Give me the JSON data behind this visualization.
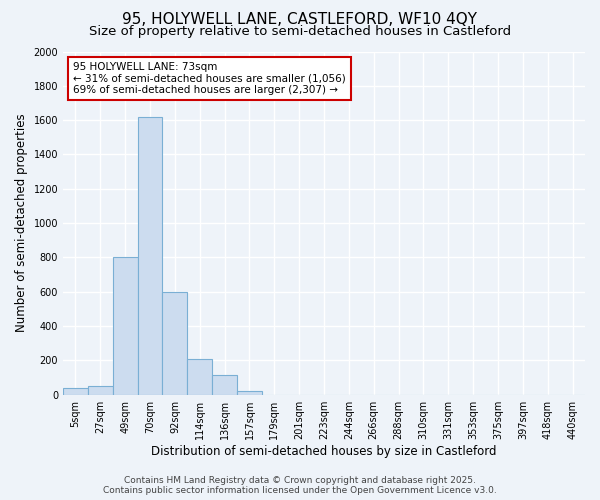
{
  "title_line1": "95, HOLYWELL LANE, CASTLEFORD, WF10 4QY",
  "title_line2": "Size of property relative to semi-detached houses in Castleford",
  "xlabel": "Distribution of semi-detached houses by size in Castleford",
  "ylabel": "Number of semi-detached properties",
  "bar_labels": [
    "5sqm",
    "27sqm",
    "49sqm",
    "70sqm",
    "92sqm",
    "114sqm",
    "136sqm",
    "157sqm",
    "179sqm",
    "201sqm",
    "223sqm",
    "244sqm",
    "266sqm",
    "288sqm",
    "310sqm",
    "331sqm",
    "353sqm",
    "375sqm",
    "397sqm",
    "418sqm",
    "440sqm"
  ],
  "bar_values": [
    40,
    50,
    800,
    1620,
    600,
    210,
    115,
    20,
    0,
    0,
    0,
    0,
    0,
    0,
    0,
    0,
    0,
    0,
    0,
    0,
    0
  ],
  "highlight_bin": 3,
  "bar_color_normal": "#ccdcef",
  "bar_color_highlight": "#ccdcef",
  "bar_edge_color": "#7aafd4",
  "ylim": [
    0,
    2000
  ],
  "yticks": [
    0,
    200,
    400,
    600,
    800,
    1000,
    1200,
    1400,
    1600,
    1800,
    2000
  ],
  "annotation_title": "95 HOLYWELL LANE: 73sqm",
  "annotation_line2": "← 31% of semi-detached houses are smaller (1,056)",
  "annotation_line3": "69% of semi-detached houses are larger (2,307) →",
  "annotation_box_color": "#ffffff",
  "annotation_box_edge": "#cc0000",
  "footer_line1": "Contains HM Land Registry data © Crown copyright and database right 2025.",
  "footer_line2": "Contains public sector information licensed under the Open Government Licence v3.0.",
  "bg_color": "#eef3f9",
  "grid_color": "#ffffff",
  "title_fontsize": 11,
  "subtitle_fontsize": 9.5,
  "axis_label_fontsize": 8.5,
  "tick_fontsize": 7,
  "footer_fontsize": 6.5,
  "ann_fontsize": 7.5
}
